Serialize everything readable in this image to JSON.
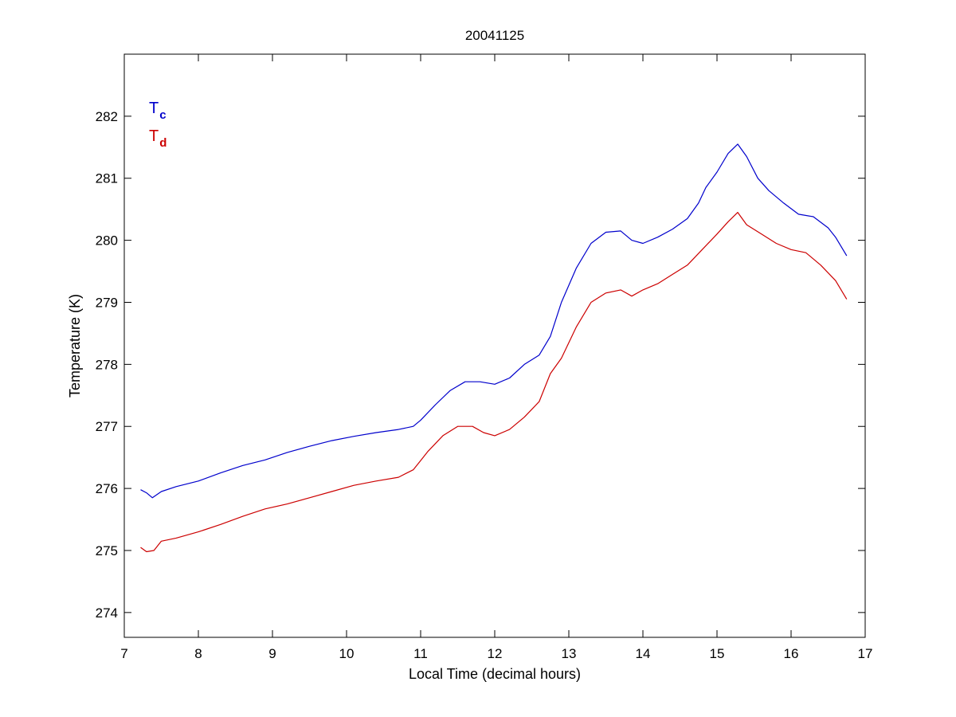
{
  "chart_data": {
    "type": "line",
    "title": "20041125",
    "xlabel": "Local Time (decimal hours)",
    "ylabel": "Temperature (K)",
    "xlim": [
      7,
      17
    ],
    "ylim": [
      273.6,
      283.0
    ],
    "xticks": [
      7,
      8,
      9,
      10,
      11,
      12,
      13,
      14,
      15,
      16,
      17
    ],
    "yticks": [
      274,
      275,
      276,
      277,
      278,
      279,
      280,
      281,
      282
    ],
    "grid": false,
    "legend_position": "top-left",
    "series": [
      {
        "name": "T",
        "subscript": "c",
        "color": "#0000cc",
        "x": [
          7.22,
          7.3,
          7.38,
          7.5,
          7.7,
          8.0,
          8.3,
          8.6,
          8.9,
          9.2,
          9.5,
          9.8,
          10.1,
          10.4,
          10.7,
          10.9,
          11.0,
          11.2,
          11.4,
          11.6,
          11.8,
          12.0,
          12.2,
          12.4,
          12.6,
          12.75,
          12.9,
          13.1,
          13.3,
          13.5,
          13.7,
          13.85,
          14.0,
          14.2,
          14.4,
          14.6,
          14.75,
          14.85,
          15.0,
          15.15,
          15.28,
          15.4,
          15.55,
          15.7,
          15.9,
          16.1,
          16.3,
          16.5,
          16.6,
          16.75
        ],
        "values": [
          275.98,
          275.93,
          275.85,
          275.95,
          276.03,
          276.12,
          276.25,
          276.37,
          276.46,
          276.58,
          276.68,
          276.77,
          276.84,
          276.9,
          276.95,
          277.0,
          277.1,
          277.35,
          277.58,
          277.72,
          277.72,
          277.68,
          277.78,
          278.0,
          278.15,
          278.45,
          279.0,
          279.55,
          279.95,
          280.13,
          280.15,
          280.0,
          279.95,
          280.05,
          280.18,
          280.35,
          280.6,
          280.85,
          281.1,
          281.4,
          281.55,
          281.35,
          281.0,
          280.8,
          280.6,
          280.42,
          280.38,
          280.2,
          280.05,
          279.75
        ]
      },
      {
        "name": "T",
        "subscript": "d",
        "color": "#cc0000",
        "x": [
          7.22,
          7.3,
          7.4,
          7.5,
          7.7,
          8.0,
          8.3,
          8.6,
          8.9,
          9.2,
          9.5,
          9.8,
          10.1,
          10.4,
          10.7,
          10.9,
          11.0,
          11.1,
          11.3,
          11.5,
          11.7,
          11.85,
          12.0,
          12.2,
          12.4,
          12.6,
          12.75,
          12.9,
          13.1,
          13.3,
          13.5,
          13.7,
          13.85,
          14.0,
          14.2,
          14.4,
          14.6,
          14.8,
          15.0,
          15.15,
          15.28,
          15.4,
          15.6,
          15.8,
          16.0,
          16.2,
          16.4,
          16.6,
          16.75
        ],
        "values": [
          275.05,
          274.98,
          275.0,
          275.15,
          275.2,
          275.3,
          275.42,
          275.55,
          275.67,
          275.75,
          275.85,
          275.95,
          276.05,
          276.12,
          276.18,
          276.3,
          276.45,
          276.6,
          276.85,
          277.0,
          277.0,
          276.9,
          276.85,
          276.95,
          277.15,
          277.4,
          277.85,
          278.1,
          278.6,
          279.0,
          279.15,
          279.2,
          279.1,
          279.2,
          279.3,
          279.45,
          279.6,
          279.85,
          280.1,
          280.3,
          280.45,
          280.25,
          280.1,
          279.95,
          279.85,
          279.8,
          279.6,
          279.35,
          279.05
        ]
      }
    ]
  }
}
